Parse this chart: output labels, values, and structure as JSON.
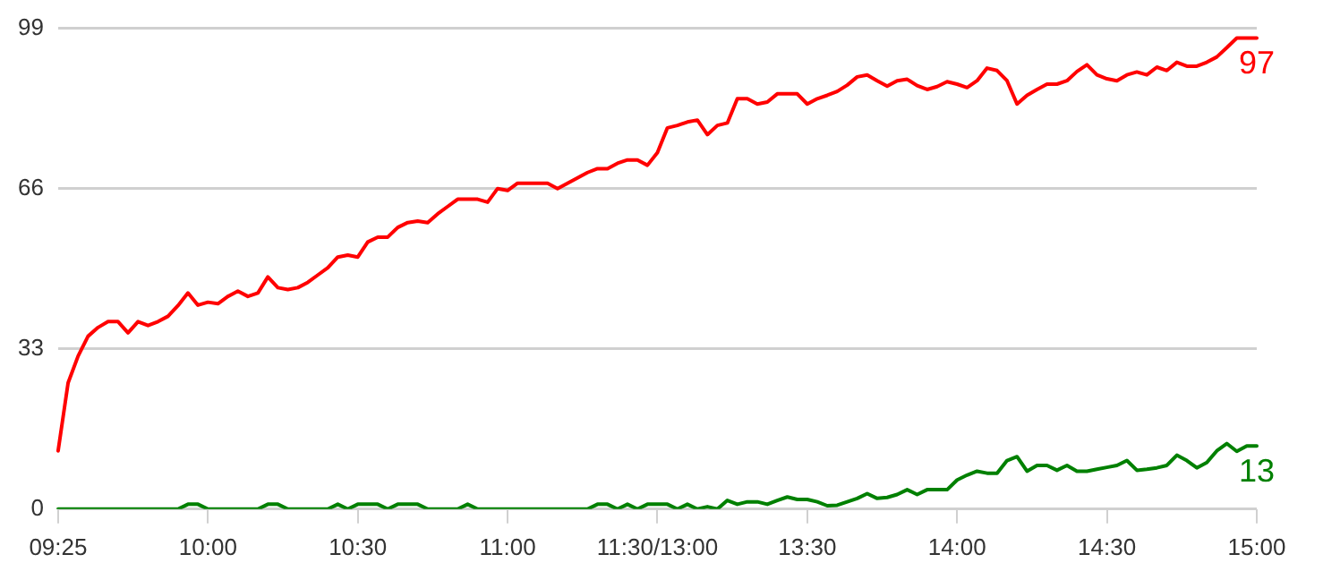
{
  "chart_data": {
    "type": "line",
    "categories": [
      "09:25",
      null,
      null,
      null,
      null,
      null,
      null,
      null,
      null,
      null,
      null,
      null,
      null,
      null,
      null,
      "10:00",
      null,
      null,
      null,
      null,
      null,
      null,
      null,
      null,
      null,
      null,
      null,
      null,
      null,
      null,
      "10:30",
      null,
      null,
      null,
      null,
      null,
      null,
      null,
      null,
      null,
      null,
      null,
      null,
      null,
      null,
      "11:00",
      null,
      null,
      null,
      null,
      null,
      null,
      null,
      null,
      null,
      null,
      null,
      null,
      null,
      null,
      "11:30/13:00",
      null,
      null,
      null,
      null,
      null,
      null,
      null,
      null,
      null,
      null,
      null,
      null,
      null,
      null,
      "13:30",
      null,
      null,
      null,
      null,
      null,
      null,
      null,
      null,
      null,
      null,
      null,
      null,
      null,
      null,
      "14:00",
      null,
      null,
      null,
      null,
      null,
      null,
      null,
      null,
      null,
      null,
      null,
      null,
      null,
      null,
      "14:30",
      null,
      null,
      null,
      null,
      null,
      null,
      null,
      null,
      null,
      null,
      null,
      null,
      null,
      null,
      "15:00"
    ],
    "ylim": [
      0,
      99
    ],
    "yticks": [
      0,
      33,
      66,
      99
    ],
    "grid": "y",
    "legend": false,
    "marker": "none",
    "line_style": "solid",
    "series": [
      {
        "color": "#ff0000",
        "values": [
          12,
          26,
          31.5,
          35.6,
          37.4,
          38.6,
          38.6,
          36.3,
          38.6,
          37.8,
          38.6,
          39.7,
          41.9,
          44.5,
          42,
          42.6,
          42.3,
          43.8,
          44.9,
          43.8,
          44.5,
          47.8,
          45.6,
          45.2,
          45.6,
          46.7,
          48.2,
          49.7,
          51.9,
          52.3,
          51.9,
          55,
          56,
          56,
          58,
          59,
          59.3,
          59,
          60.8,
          62.3,
          63.8,
          63.8,
          63.8,
          63.2,
          66,
          65.6,
          67.1,
          67.1,
          67.1,
          67.1,
          66,
          67.1,
          68.2,
          69.3,
          70.1,
          70.1,
          71.2,
          71.9,
          71.9,
          70.8,
          73.4,
          78.5,
          79,
          79.7,
          80.1,
          77.1,
          79,
          79.5,
          84.5,
          84.5,
          83.4,
          83.8,
          85.5,
          85.5,
          85.5,
          83.4,
          84.5,
          85.2,
          86,
          87.3,
          89,
          89.4,
          88.2,
          87.1,
          88.2,
          88.5,
          87.2,
          86.4,
          87,
          88,
          87.5,
          86.8,
          88.2,
          90.8,
          90.3,
          88.2,
          83.4,
          85.2,
          86.4,
          87.5,
          87.5,
          88.2,
          90.1,
          91.5,
          89.4,
          88.6,
          88.2,
          89.4,
          90,
          89.4,
          91,
          90.3,
          92,
          91.2,
          91.2,
          92,
          93.1,
          95,
          97,
          97,
          97
        ]
      },
      {
        "color": "#008000",
        "values": [
          0,
          0,
          0,
          0,
          0,
          0,
          0,
          0,
          0,
          0,
          0,
          0,
          0,
          1,
          1,
          0,
          0,
          0,
          0,
          0,
          0,
          1,
          1,
          0,
          0,
          0,
          0,
          0,
          1,
          0,
          1,
          1,
          1,
          0,
          1,
          1,
          1,
          0,
          0,
          0,
          0,
          1,
          0,
          0,
          0,
          0,
          0,
          0,
          0,
          0,
          0,
          0,
          0,
          0,
          1,
          1,
          0,
          1,
          0,
          1,
          1,
          1,
          0,
          1,
          0,
          0.5,
          0,
          1.8,
          1,
          1.5,
          1.5,
          1,
          1.8,
          2.5,
          2,
          2,
          1.5,
          0.7,
          0.8,
          1.5,
          2.2,
          3.2,
          2.2,
          2.4,
          3,
          4,
          3,
          4,
          4,
          4,
          6,
          7,
          7.8,
          7.4,
          7.4,
          10,
          10.8,
          7.8,
          9,
          9,
          8,
          9,
          7.8,
          7.8,
          8.2,
          8.6,
          9,
          10,
          8,
          8.2,
          8.5,
          9,
          11.1,
          10,
          8.5,
          9.6,
          12,
          13.5,
          11.9,
          13,
          13
        ]
      }
    ],
    "annotations": [
      {
        "text": "97",
        "x": "15:00",
        "y": 97
      },
      {
        "text": "13",
        "x": "15:00",
        "y": 13
      }
    ]
  }
}
